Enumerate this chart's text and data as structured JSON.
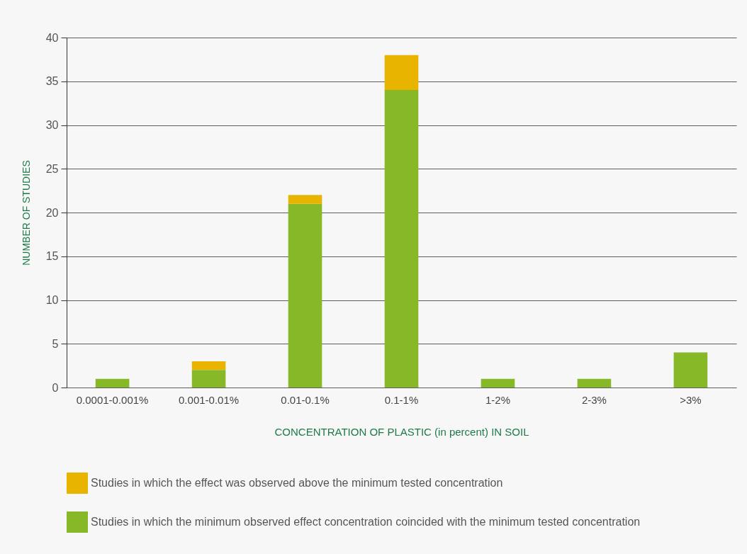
{
  "chart_data": {
    "type": "bar",
    "stacked": true,
    "xlabel": "CONCENTRATION OF PLASTIC (in percent) IN SOIL",
    "ylabel": "NUMBER OF STUDIES",
    "categories": [
      "0.0001-0.001%",
      "0.001-0.01%",
      "0.01-0.1%",
      "0.1-1%",
      "1-2%",
      "2-3%",
      ">3%"
    ],
    "series": [
      {
        "name": "Studies in which the minimum observed effect concentration coincided with the minimum tested concentration",
        "color": "#86b828",
        "values": [
          1,
          2,
          21,
          34,
          1,
          1,
          4
        ]
      },
      {
        "name": "Studies in which the effect was observed above the minimum tested concentration",
        "color": "#e8b400",
        "values": [
          0,
          1,
          1,
          4,
          0,
          0,
          0
        ]
      }
    ],
    "ylim": [
      0,
      40
    ],
    "yticks": [
      0,
      5,
      10,
      15,
      20,
      25,
      30,
      35,
      40
    ],
    "grid": "y",
    "legend": "bottom"
  }
}
